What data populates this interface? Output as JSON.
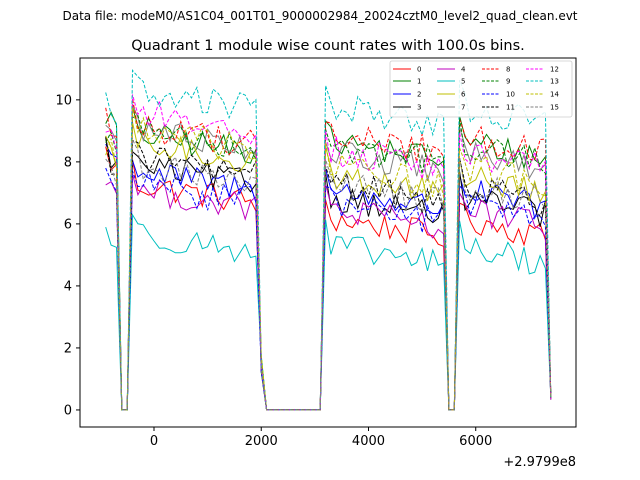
{
  "suptitle": "Data file: modeM0/AS1C04_001T01_9000002984_20024cztM0_level2_quad_clean.evt",
  "chart_data": {
    "type": "line",
    "title": "Quadrant 1 module wise count rates with 100.0s bins.",
    "xlabel": "",
    "ylabel": "",
    "x_offset_label": "+2.9799e8",
    "xlim": [
      -1380,
      7870
    ],
    "ylim": [
      -0.55,
      11.35
    ],
    "xticks": [
      0,
      2000,
      4000,
      6000
    ],
    "xtick_labels": [
      "0",
      "2000",
      "4000",
      "6000"
    ],
    "yticks": [
      0,
      2,
      4,
      6,
      8,
      10
    ],
    "ytick_labels": [
      "0",
      "2",
      "4",
      "6",
      "8",
      "10"
    ],
    "legend_position": "top-right",
    "legend_columns": 4,
    "grid": false,
    "segments": [
      {
        "start": -900,
        "n": 3
      },
      {
        "start": -600,
        "n": 2,
        "zero": true
      },
      {
        "start": -400,
        "n": 24
      },
      {
        "start": 2000,
        "n": 1,
        "decay": 1.5
      },
      {
        "start": 2100,
        "n": 11,
        "zero": true
      },
      {
        "start": 3200,
        "n": 23
      },
      {
        "start": 5500,
        "n": 2,
        "zero": true
      },
      {
        "start": 5700,
        "n": 17
      },
      {
        "start": 7400,
        "n": 1,
        "decay": 0.4
      }
    ],
    "series": [
      {
        "name": "0",
        "color": "#ff0000",
        "dash": false,
        "levels": [
          8.0,
          7.0,
          5.9
        ]
      },
      {
        "name": "1",
        "color": "#008000",
        "dash": false,
        "levels": [
          9.3,
          8.6,
          8.4
        ]
      },
      {
        "name": "2",
        "color": "#0000ff",
        "dash": false,
        "levels": [
          8.3,
          7.4,
          6.8
        ]
      },
      {
        "name": "3",
        "color": "#000000",
        "dash": false,
        "levels": [
          8.2,
          7.6,
          6.6
        ]
      },
      {
        "name": "4",
        "color": "#bf00bf",
        "dash": false,
        "levels": [
          7.2,
          6.8,
          6.2
        ]
      },
      {
        "name": "5",
        "color": "#00bfbf",
        "dash": false,
        "levels": [
          5.5,
          5.4,
          5.0
        ]
      },
      {
        "name": "6",
        "color": "#bfbf00",
        "dash": false,
        "levels": [
          8.1,
          8.3,
          7.3
        ]
      },
      {
        "name": "7",
        "color": "#808080",
        "dash": false,
        "levels": [
          9.0,
          8.8,
          8.0
        ]
      },
      {
        "name": "8",
        "color": "#ff0000",
        "dash": true,
        "levels": [
          9.2,
          8.9,
          8.6
        ]
      },
      {
        "name": "9",
        "color": "#008000",
        "dash": true,
        "levels": [
          8.7,
          8.8,
          8.3
        ]
      },
      {
        "name": "10",
        "color": "#0000ff",
        "dash": true,
        "levels": [
          7.5,
          7.0,
          6.4
        ]
      },
      {
        "name": "11",
        "color": "#000000",
        "dash": true,
        "levels": [
          8.1,
          7.9,
          7.0
        ]
      },
      {
        "name": "12",
        "color": "#ff00ff",
        "dash": true,
        "levels": [
          8.9,
          9.3,
          8.1
        ]
      },
      {
        "name": "13",
        "color": "#00bfbf",
        "dash": true,
        "levels": [
          9.8,
          10.0,
          9.5
        ]
      },
      {
        "name": "14",
        "color": "#bfbf00",
        "dash": true,
        "levels": [
          8.4,
          8.7,
          7.6
        ]
      },
      {
        "name": "15",
        "color": "#808080",
        "dash": true,
        "levels": [
          7.9,
          7.6,
          7.0
        ]
      }
    ]
  }
}
